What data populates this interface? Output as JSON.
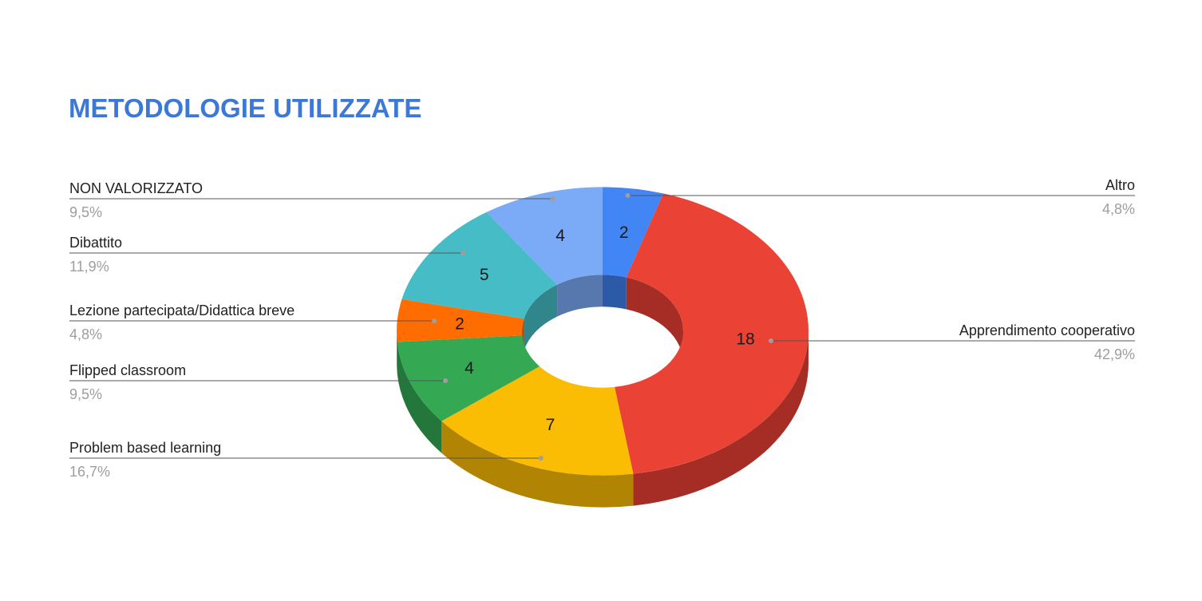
{
  "chart_data": {
    "type": "pie",
    "variant": "3d-donut",
    "title": "METODOLOGIE UTILIZZATE",
    "slices": [
      {
        "label": "Altro",
        "value": 2,
        "percent": "4,8%",
        "color": "#4285f4",
        "side_color": "#2d5aa6"
      },
      {
        "label": "Apprendimento cooperativo",
        "value": 18,
        "percent": "42,9%",
        "color": "#ea4335",
        "side_color": "#a52d25"
      },
      {
        "label": "Problem based learning",
        "value": 7,
        "percent": "16,7%",
        "color": "#fbbc04",
        "side_color": "#b18503"
      },
      {
        "label": "Flipped classroom",
        "value": 4,
        "percent": "9,5%",
        "color": "#34a853",
        "side_color": "#24773b"
      },
      {
        "label": "Lezione partecipata/Didattica breve",
        "value": 2,
        "percent": "4,8%",
        "color": "#ff6d01",
        "side_color": "#b44d01"
      },
      {
        "label": "Dibattito",
        "value": 5,
        "percent": "11,9%",
        "color": "#46bdc6",
        "side_color": "#31868c"
      },
      {
        "label": "NON VALORIZZATO",
        "value": 4,
        "percent": "9,5%",
        "color": "#7baaf7",
        "side_color": "#5778af"
      }
    ],
    "legend_placement": "labels with leader lines"
  },
  "colors": {
    "title": "#3c78d8",
    "leader_line": "#555555",
    "leader_dot": "#9e9e9e"
  }
}
